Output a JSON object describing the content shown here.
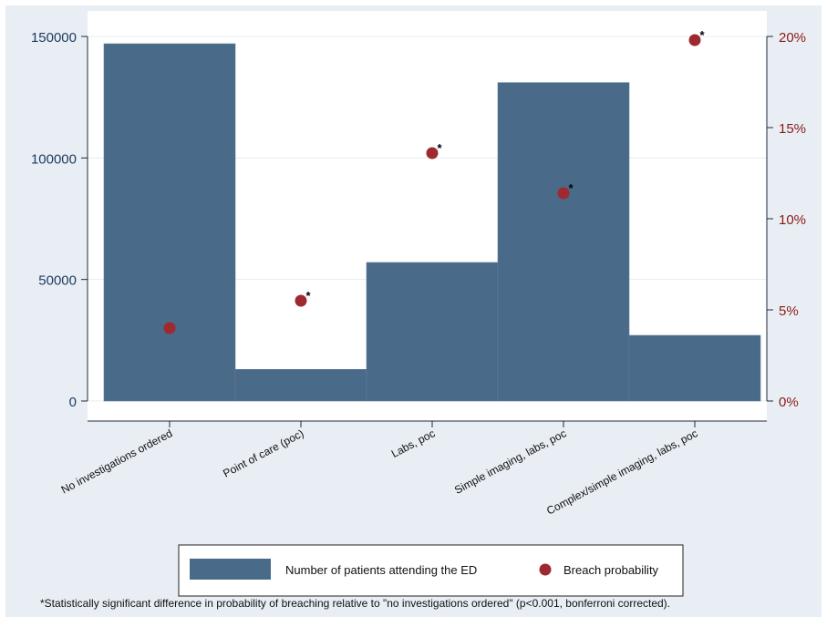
{
  "chart_data": {
    "type": "bar",
    "categories": [
      "No investigations ordered",
      "Point of care (poc)",
      "Labs, poc",
      "Simple imaging, labs, poc",
      "Complex/simple imaging, labs, poc"
    ],
    "series": [
      {
        "name": "Number of patients attending the ED",
        "type": "bar",
        "axis": "left",
        "values": [
          147000,
          13000,
          57000,
          131000,
          27000
        ]
      },
      {
        "name": "Breach probability",
        "type": "scatter",
        "axis": "right",
        "values": [
          4.0,
          5.5,
          13.6,
          11.4,
          19.8
        ],
        "significant": [
          false,
          true,
          true,
          true,
          true
        ]
      }
    ],
    "y_left": {
      "ylim": [
        0,
        150000
      ],
      "ticks": [
        "0",
        "50000",
        "100000",
        "150000"
      ],
      "tick_values": [
        0,
        50000,
        100000,
        150000
      ]
    },
    "y_right": {
      "ylim": [
        0,
        20
      ],
      "ticks": [
        "0%",
        "5%",
        "10%",
        "15%",
        "20%"
      ],
      "tick_values": [
        0,
        5,
        10,
        15,
        20
      ]
    },
    "grid": true,
    "legend_position": "bottom",
    "significance_marker": "*",
    "colors": {
      "bar": "#4a6a8a",
      "point": "#9e2a2f",
      "left_axis": "#1f3b63",
      "right_axis": "#8b1a1a",
      "frame": "#e8eef3"
    }
  },
  "footnote": "*Statistically significant difference in probability of breaching relative to \"no investigations ordered\" (p<0.001, bonferroni corrected)."
}
